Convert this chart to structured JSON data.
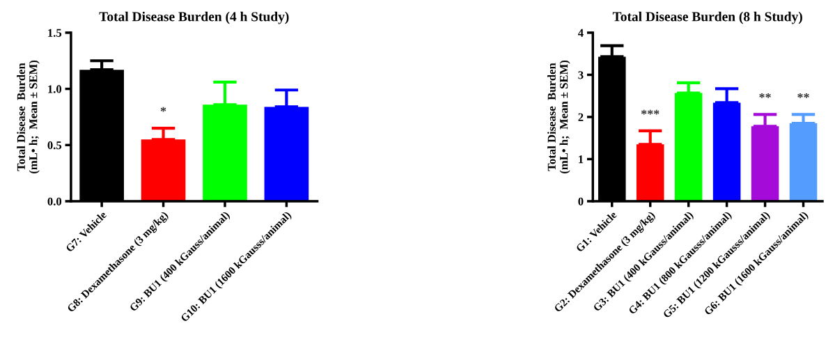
{
  "chart_data": [
    {
      "type": "bar",
      "title": "Total Disease Burden (4 h Study)",
      "ylabel": "Total Disease  Burden\n(mL• h;  Mean ± SEM)",
      "categories": [
        "G7: Vehicle",
        "G8: Dexamethasone (3 mg/kg)",
        "G9: BU1 (400 kGauss/animal)",
        "G10: BU1 (1600 kGausss/animal)"
      ],
      "values": [
        1.17,
        0.55,
        0.86,
        0.84
      ],
      "colors": [
        "#000000",
        "#ff0000",
        "#00ff00",
        "#0000ff"
      ],
      "errors": [
        [
          1.17,
          1.25
        ],
        [
          0.55,
          0.65
        ],
        [
          0.86,
          1.06
        ],
        [
          0.84,
          0.99
        ]
      ],
      "ylim": [
        0,
        1.5
      ],
      "yticks": [
        {
          "value": 0,
          "label": "0.0"
        },
        {
          "value": 0.5,
          "label": "0.5"
        },
        {
          "value": 1,
          "label": "1.0"
        },
        {
          "value": 1.5,
          "label": "1.5"
        }
      ],
      "grid": false,
      "legend": false,
      "value_labels": [
        null,
        "*",
        null,
        null
      ]
    },
    {
      "type": "bar",
      "title": "Total Disease Burden (8 h Study)",
      "ylabel": "Total Disease  Burden\n(mL• h;  Mean ± SEM)",
      "categories": [
        "G1: Vehicle",
        "G2: Dexamethasone (3 mg/kg)",
        "G3: BU1 (400 kGauss/animal)",
        "G4: BU1 (800 kGausss/animal)",
        "G5: BU1 (1200 kGausss/animal)",
        "G6: BU1 (1600 kGauss/animal)"
      ],
      "values": [
        3.43,
        1.35,
        2.57,
        2.34,
        1.78,
        1.85
      ],
      "colors": [
        "#000000",
        "#ff0000",
        "#00ff00",
        "#0000ff",
        "#a40ad8",
        "#559cff"
      ],
      "errors": [
        [
          3.43,
          3.69
        ],
        [
          1.35,
          1.67
        ],
        [
          2.57,
          2.81
        ],
        [
          2.34,
          2.67
        ],
        [
          1.78,
          2.06
        ],
        [
          1.85,
          2.06
        ]
      ],
      "ylim": [
        0,
        4
      ],
      "yticks": [
        0,
        1,
        2,
        3,
        4
      ],
      "grid": false,
      "legend": false,
      "value_labels": [
        null,
        "***",
        null,
        null,
        "**",
        "**"
      ]
    }
  ]
}
